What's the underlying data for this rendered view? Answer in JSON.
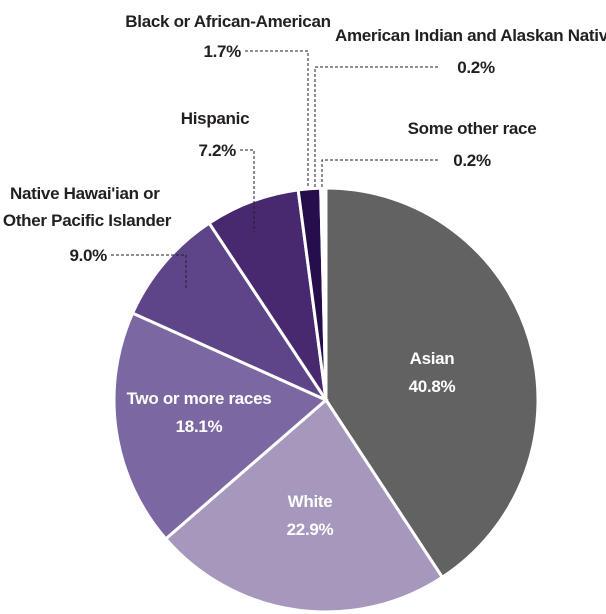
{
  "chart_data": {
    "type": "pie",
    "title": "",
    "start_angle_deg": 0,
    "direction": "clockwise",
    "slices": [
      {
        "name": "Asian",
        "value": 40.8,
        "label": "40.8%",
        "color": "#626262",
        "label_position": "inside"
      },
      {
        "name": "White",
        "value": 22.9,
        "label": "22.9%",
        "color": "#a697bd",
        "label_position": "inside"
      },
      {
        "name": "Two or more races",
        "value": 18.1,
        "label": "18.1%",
        "color": "#7b67a1",
        "label_position": "inside"
      },
      {
        "name": "Native Hawai'ian or Other Pacific Islander",
        "value": 9.0,
        "label": "9.0%",
        "color": "#5e4488",
        "label_position": "outside"
      },
      {
        "name": "Hispanic",
        "value": 7.2,
        "label": "7.2%",
        "color": "#482970",
        "label_position": "outside"
      },
      {
        "name": "Black or African-American",
        "value": 1.7,
        "label": "1.7%",
        "color": "#260d4c",
        "label_position": "outside"
      },
      {
        "name": "American Indian and Alaskan Native",
        "value": 0.2,
        "label": "0.2%",
        "color": "#1c0a3d",
        "label_position": "outside"
      },
      {
        "name": "Some other race",
        "value": 0.2,
        "label": "0.2%",
        "color": "#1c0a3d",
        "label_position": "outside"
      }
    ]
  }
}
